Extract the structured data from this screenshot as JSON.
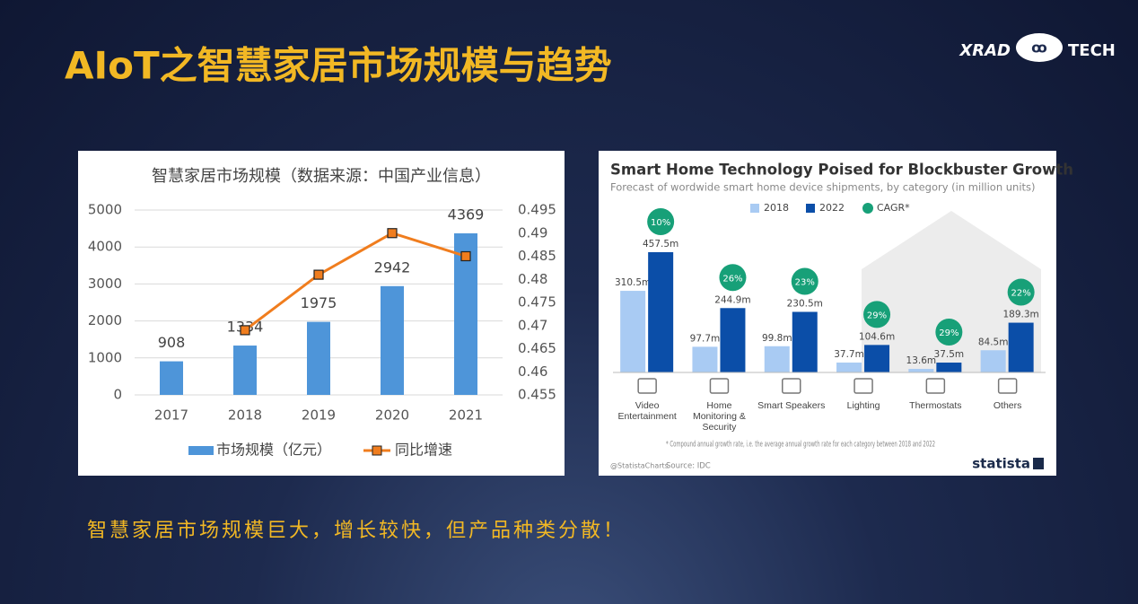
{
  "title": "AIoT之智慧家居市场规模与趋势",
  "logo": {
    "left": "XRAD",
    "right": "TECH"
  },
  "chart_data": [
    {
      "type": "combo",
      "title": "智慧家居市场规模（数据来源：中国产业信息）",
      "categories": [
        "2017",
        "2018",
        "2019",
        "2020",
        "2021"
      ],
      "series": [
        {
          "name": "市场规模（亿元）",
          "type": "bar",
          "color": "#4e95d9",
          "values": [
            908,
            1334,
            1975,
            2942,
            4369
          ]
        },
        {
          "name": "同比增速",
          "type": "line",
          "axis": "y2",
          "color": "#f07d1e",
          "values": [
            null,
            0.469,
            0.481,
            0.49,
            0.485
          ]
        }
      ],
      "ylim": [
        0,
        5000
      ],
      "yticks": [
        0,
        1000,
        2000,
        3000,
        4000,
        5000
      ],
      "y2lim": [
        0.455,
        0.495
      ],
      "y2ticks": [
        0.455,
        0.46,
        0.465,
        0.47,
        0.475,
        0.48,
        0.485,
        0.49,
        0.495
      ],
      "grid": true,
      "legend": "bottom"
    },
    {
      "type": "bar",
      "title": "Smart Home Technology Poised for Blockbuster Growth",
      "subtitle": "Forecast of wordwide smart home device shipments, by category (in million units)",
      "categories": [
        "Video Entertainment",
        "Home Monitoring & Security",
        "Smart Speakers",
        "Lighting",
        "Thermostats",
        "Others"
      ],
      "series": [
        {
          "name": "2018",
          "type": "bar",
          "color": "#a9cbf3",
          "values": [
            310.5,
            97.7,
            99.8,
            37.7,
            13.6,
            84.5
          ],
          "value_labels": [
            "310.5m",
            "97.7m",
            "99.8m",
            "37.7m",
            "13.6m",
            "84.5m"
          ]
        },
        {
          "name": "2022",
          "type": "bar",
          "color": "#0b4ea8",
          "values": [
            457.5,
            244.9,
            230.5,
            104.6,
            37.5,
            189.3
          ],
          "value_labels": [
            "457.5m",
            "244.9m",
            "230.5m",
            "104.6m",
            "37.5m",
            "189.3m"
          ]
        },
        {
          "name": "CAGR*",
          "type": "circle",
          "color": "#17a078",
          "values": [
            10,
            26,
            23,
            29,
            29,
            22
          ],
          "value_labels": [
            "10%",
            "26%",
            "23%",
            "29%",
            "29%",
            "22%"
          ]
        }
      ],
      "legend": "top",
      "note": "* Compound annual growth rate, i.e. the average annual growth rate for each category between 2018 and 2022",
      "credit": "@StatistaCharts",
      "source": "Source: IDC",
      "brand": "statista"
    }
  ],
  "conclusion": "智慧家居市场规模巨大，增长较快，但产品种类分散！"
}
